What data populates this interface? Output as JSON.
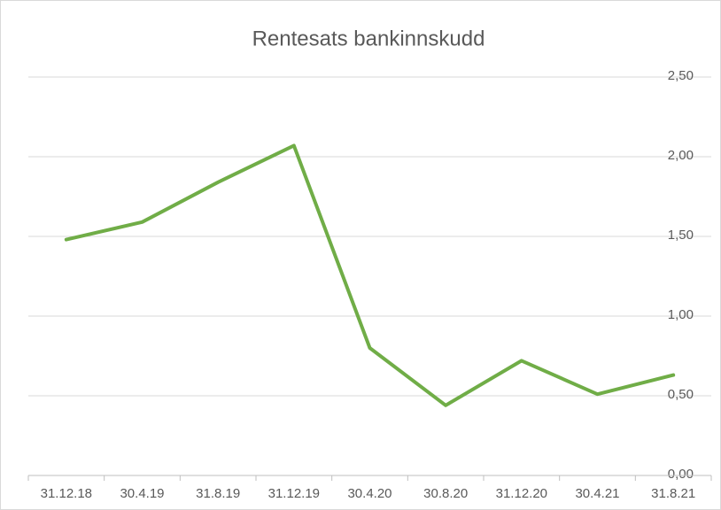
{
  "chart_data": {
    "type": "line",
    "title": "Rentesats bankinnskudd",
    "categories": [
      "31.12.18",
      "30.4.19",
      "31.8.19",
      "31.12.19",
      "30.4.20",
      "30.8.20",
      "31.12.20",
      "30.4.21",
      "31.8.21"
    ],
    "series": [
      {
        "name": "Rentesats bankinnskudd",
        "color": "#70ad47",
        "values": [
          1.48,
          1.59,
          1.84,
          2.07,
          0.8,
          0.44,
          0.72,
          0.51,
          0.63
        ]
      }
    ],
    "ylim": [
      0,
      2.5
    ],
    "yticks": [
      {
        "value": 0,
        "label": "0,00"
      },
      {
        "value": 0.5,
        "label": "0,50"
      },
      {
        "value": 1,
        "label": "1,00"
      },
      {
        "value": 1.5,
        "label": "1,50"
      },
      {
        "value": 2,
        "label": "2,00"
      },
      {
        "value": 2.5,
        "label": "2,50"
      }
    ],
    "grid": true,
    "y_axis_side": "right"
  }
}
